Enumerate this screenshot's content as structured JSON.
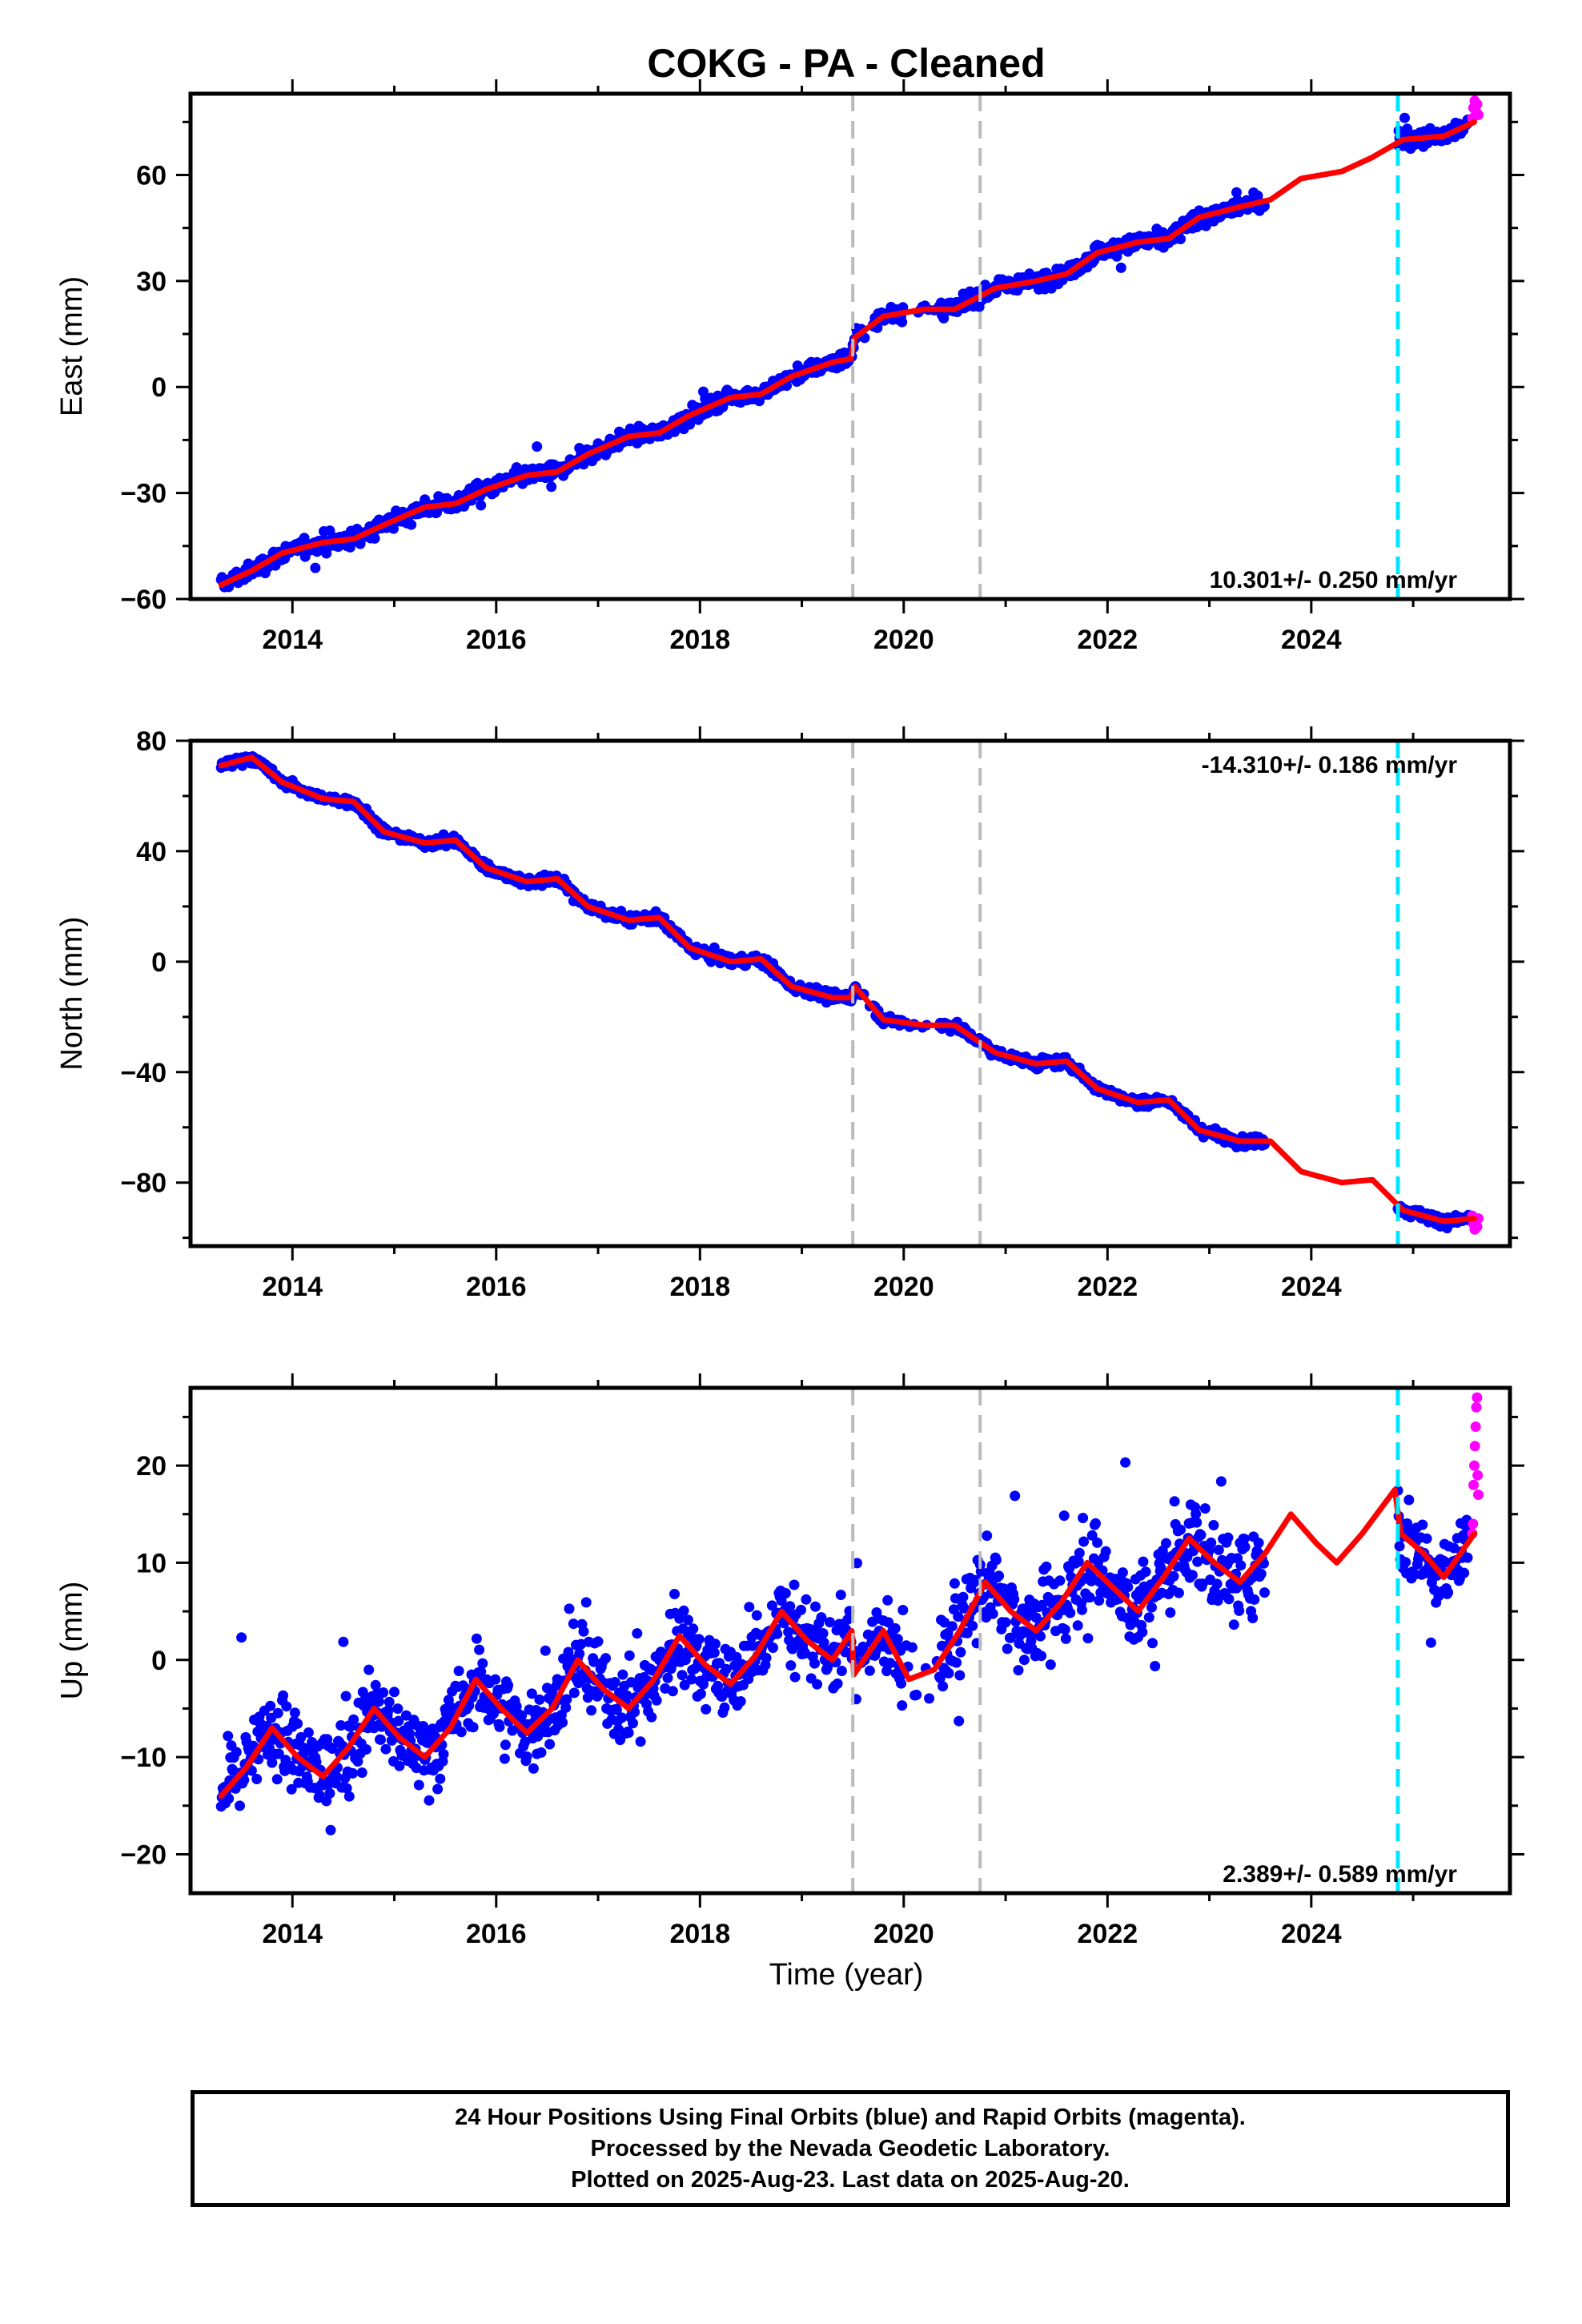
{
  "title": "COKG  - PA - Cleaned",
  "xlabel": "Time (year)",
  "footer": {
    "line1": "24 Hour Positions Using Final Orbits (blue) and Rapid Orbits (magenta).",
    "line2": "Processed by the Nevada Geodetic Laboratory.",
    "line3": "Plotted on 2025-Aug-23. Last data on 2025-Aug-20."
  },
  "colors": {
    "final": "#0000ff",
    "rapid": "#ff00ff",
    "model": "#ff0000",
    "equipment_change": "#bbbbbb",
    "event": "#00e5ff"
  },
  "chart_data": [
    {
      "type": "scatter",
      "name": "east",
      "ylabel": "East (mm)",
      "xlim": [
        2013.0,
        2025.95
      ],
      "ylim": [
        -60,
        83
      ],
      "yticks": [
        -60,
        -30,
        0,
        30,
        60
      ],
      "xticks": [
        2014,
        2016,
        2018,
        2020,
        2022,
        2024
      ],
      "rate_text": "10.301+/- 0.250 mm/yr",
      "rate_position": "bottom-right",
      "vlines_gray": [
        2019.5,
        2020.75
      ],
      "vline_cyan": 2024.85,
      "series": [
        {
          "name": "model",
          "points": [
            [
              2013.3,
              -56
            ],
            [
              2013.6,
              -52
            ],
            [
              2013.9,
              -47
            ],
            [
              2014.3,
              -44
            ],
            [
              2014.6,
              -43
            ],
            [
              2014.9,
              -39
            ],
            [
              2015.3,
              -34
            ],
            [
              2015.6,
              -33
            ],
            [
              2015.9,
              -29
            ],
            [
              2016.3,
              -25
            ],
            [
              2016.6,
              -24
            ],
            [
              2016.9,
              -19
            ],
            [
              2017.3,
              -14
            ],
            [
              2017.6,
              -13
            ],
            [
              2017.9,
              -8
            ],
            [
              2018.3,
              -3
            ],
            [
              2018.6,
              -2
            ],
            [
              2018.9,
              3
            ],
            [
              2019.3,
              7
            ],
            [
              2019.48,
              8
            ],
            [
              2019.52,
              14
            ],
            [
              2019.8,
              20
            ],
            [
              2020.2,
              22
            ],
            [
              2020.5,
              22
            ],
            [
              2020.9,
              28
            ],
            [
              2021.3,
              30
            ],
            [
              2021.6,
              32
            ],
            [
              2021.9,
              38
            ],
            [
              2022.3,
              41
            ],
            [
              2022.6,
              42
            ],
            [
              2022.9,
              48
            ],
            [
              2023.3,
              51
            ],
            [
              2023.6,
              53
            ],
            [
              2023.9,
              59
            ],
            [
              2024.3,
              61
            ],
            [
              2024.6,
              65
            ],
            [
              2024.9,
              70
            ],
            [
              2025.3,
              71
            ],
            [
              2025.6,
              75
            ]
          ]
        },
        {
          "name": "final",
          "start": 2013.3,
          "end": 2025.55,
          "gaps": [
            [
              2023.55,
              2024.85
            ]
          ],
          "rate": 10.301,
          "noise": 1.6,
          "outlier_frac": 0.02
        },
        {
          "name": "rapid",
          "start": 2025.58,
          "end": 2025.64,
          "values_mm": [
            76,
            79,
            81,
            78,
            80,
            77
          ]
        }
      ]
    },
    {
      "type": "scatter",
      "name": "north",
      "ylabel": "North (mm)",
      "xlim": [
        2013.0,
        2025.95
      ],
      "ylim": [
        -103,
        80
      ],
      "yticks": [
        -80,
        -40,
        0,
        40,
        80
      ],
      "xticks": [
        2014,
        2016,
        2018,
        2020,
        2022,
        2024
      ],
      "rate_text": "-14.310+/- 0.186 mm/yr",
      "rate_position": "top-right",
      "vlines_gray": [
        2019.5,
        2020.75
      ],
      "vline_cyan": 2024.85,
      "series": [
        {
          "name": "model",
          "points": [
            [
              2013.3,
              71
            ],
            [
              2013.6,
              74
            ],
            [
              2013.9,
              65
            ],
            [
              2014.3,
              59
            ],
            [
              2014.6,
              58
            ],
            [
              2014.9,
              47
            ],
            [
              2015.3,
              43
            ],
            [
              2015.6,
              44
            ],
            [
              2015.9,
              34
            ],
            [
              2016.3,
              29
            ],
            [
              2016.6,
              30
            ],
            [
              2016.9,
              20
            ],
            [
              2017.3,
              15
            ],
            [
              2017.6,
              16
            ],
            [
              2017.9,
              5
            ],
            [
              2018.3,
              0
            ],
            [
              2018.6,
              1
            ],
            [
              2018.9,
              -9
            ],
            [
              2019.3,
              -13
            ],
            [
              2019.48,
              -13
            ],
            [
              2019.52,
              -9
            ],
            [
              2019.8,
              -21
            ],
            [
              2020.2,
              -23
            ],
            [
              2020.5,
              -23
            ],
            [
              2020.9,
              -33
            ],
            [
              2021.3,
              -37
            ],
            [
              2021.6,
              -36
            ],
            [
              2021.9,
              -46
            ],
            [
              2022.3,
              -51
            ],
            [
              2022.6,
              -50
            ],
            [
              2022.9,
              -61
            ],
            [
              2023.3,
              -65
            ],
            [
              2023.6,
              -65
            ],
            [
              2023.9,
              -76
            ],
            [
              2024.3,
              -80
            ],
            [
              2024.6,
              -79
            ],
            [
              2024.9,
              -90
            ],
            [
              2025.3,
              -94
            ],
            [
              2025.6,
              -93
            ]
          ]
        },
        {
          "name": "final",
          "start": 2013.3,
          "end": 2025.55,
          "gaps": [
            [
              2023.55,
              2024.85
            ]
          ],
          "rate": -14.31,
          "noise": 1.3,
          "outlier_frac": 0.0
        },
        {
          "name": "rapid",
          "start": 2025.58,
          "end": 2025.64,
          "values_mm": [
            -92,
            -95,
            -97,
            -94,
            -96,
            -93
          ]
        }
      ]
    },
    {
      "type": "scatter",
      "name": "up",
      "ylabel": "Up (mm)",
      "xlim": [
        2013.0,
        2025.95
      ],
      "ylim": [
        -24,
        28
      ],
      "yticks": [
        -20,
        -10,
        0,
        10,
        20
      ],
      "xticks": [
        2014,
        2016,
        2018,
        2020,
        2022,
        2024
      ],
      "rate_text": "2.389+/- 0.589 mm/yr",
      "rate_position": "bottom-right",
      "vlines_gray": [
        2019.5,
        2020.75
      ],
      "vline_cyan": 2024.85,
      "series": [
        {
          "name": "model",
          "points": [
            [
              2013.3,
              -14
            ],
            [
              2013.55,
              -11
            ],
            [
              2013.8,
              -7
            ],
            [
              2014.05,
              -10
            ],
            [
              2014.3,
              -12
            ],
            [
              2014.55,
              -9
            ],
            [
              2014.8,
              -5
            ],
            [
              2015.05,
              -8
            ],
            [
              2015.3,
              -10
            ],
            [
              2015.55,
              -7
            ],
            [
              2015.8,
              -2
            ],
            [
              2016.05,
              -5
            ],
            [
              2016.3,
              -7.5
            ],
            [
              2016.55,
              -5
            ],
            [
              2016.8,
              0
            ],
            [
              2017.05,
              -3
            ],
            [
              2017.3,
              -5
            ],
            [
              2017.55,
              -2
            ],
            [
              2017.8,
              2.5
            ],
            [
              2018.05,
              -0.5
            ],
            [
              2018.3,
              -2.5
            ],
            [
              2018.55,
              0.5
            ],
            [
              2018.8,
              5
            ],
            [
              2019.05,
              2
            ],
            [
              2019.3,
              0
            ],
            [
              2019.49,
              3
            ],
            [
              2019.51,
              -1.5
            ],
            [
              2019.8,
              3
            ],
            [
              2020.05,
              -2
            ],
            [
              2020.3,
              -1
            ],
            [
              2020.55,
              3
            ],
            [
              2020.8,
              8
            ],
            [
              2021.05,
              5
            ],
            [
              2021.3,
              3
            ],
            [
              2021.55,
              6
            ],
            [
              2021.8,
              10
            ],
            [
              2022.05,
              7.5
            ],
            [
              2022.3,
              5
            ],
            [
              2022.55,
              8.5
            ],
            [
              2022.8,
              12.5
            ],
            [
              2023.05,
              10
            ],
            [
              2023.3,
              8
            ],
            [
              2023.55,
              11
            ],
            [
              2023.8,
              15
            ],
            [
              2024.05,
              12
            ],
            [
              2024.25,
              10
            ],
            [
              2024.5,
              13
            ],
            [
              2024.82,
              17.5
            ],
            [
              2024.88,
              13
            ],
            [
              2025.1,
              11
            ],
            [
              2025.3,
              8.5
            ],
            [
              2025.6,
              13
            ]
          ]
        },
        {
          "name": "final",
          "start": 2013.3,
          "end": 2025.55,
          "gaps": [
            [
              2023.55,
              2024.85
            ]
          ],
          "rate": 2.389,
          "noise": 3.0,
          "outlier_frac": 0.02
        },
        {
          "name": "rapid",
          "start": 2025.58,
          "end": 2025.64,
          "values_mm": [
            13,
            14,
            18,
            20,
            22,
            24,
            26,
            27,
            19,
            17
          ]
        }
      ]
    }
  ]
}
